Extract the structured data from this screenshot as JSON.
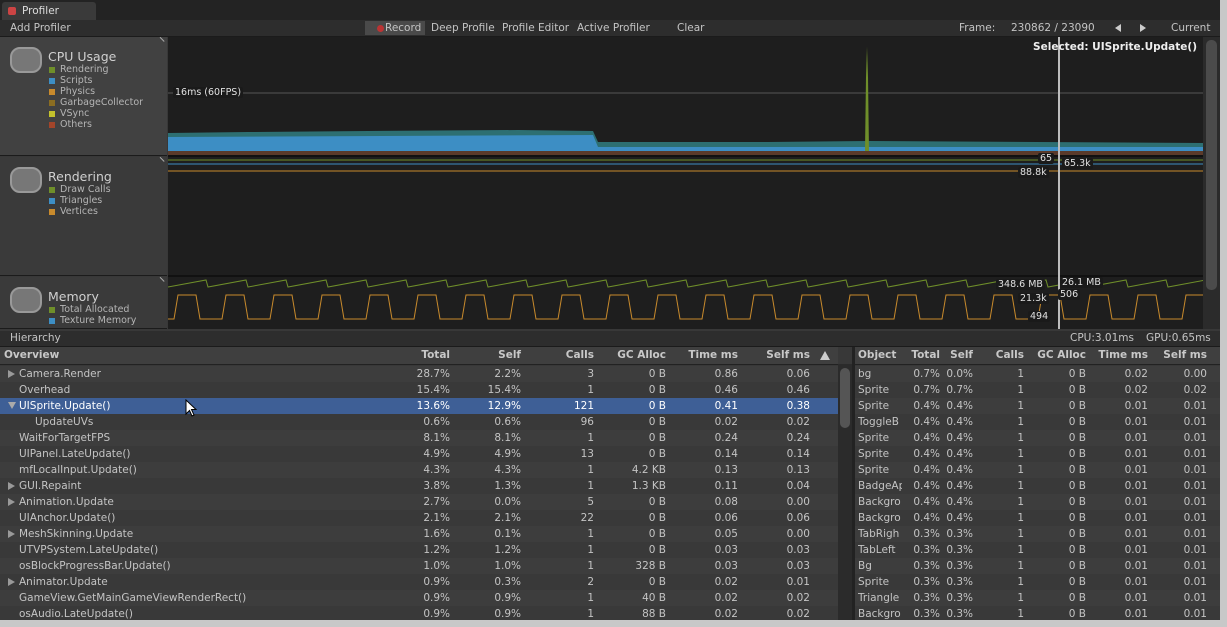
{
  "tab": "Profiler",
  "toolbar": {
    "add_profiler": "Add Profiler",
    "record": "Record",
    "deep_profile": "Deep Profile",
    "profile_editor": "Profile Editor",
    "active_profiler": "Active Profiler",
    "clear": "Clear",
    "frame_label": "Frame:",
    "frame_value": "230862 / 23090",
    "current": "Current"
  },
  "modules": [
    {
      "title": "CPU Usage",
      "legend": [
        {
          "name": "Rendering",
          "color": "#6f8f2a"
        },
        {
          "name": "Scripts",
          "color": "#3d8ec4"
        },
        {
          "name": "Physics",
          "color": "#c88a2c"
        },
        {
          "name": "GarbageCollector",
          "color": "#8b6d21"
        },
        {
          "name": "VSync",
          "color": "#c3c12c"
        },
        {
          "name": "Others",
          "color": "#a2452a"
        }
      ]
    },
    {
      "title": "Rendering",
      "legend": [
        {
          "name": "Draw Calls",
          "color": "#6f8f2a"
        },
        {
          "name": "Triangles",
          "color": "#3d8ec4"
        },
        {
          "name": "Vertices",
          "color": "#c88a2c"
        }
      ]
    },
    {
      "title": "Memory",
      "legend": [
        {
          "name": "Total Allocated",
          "color": "#6f8f2a"
        },
        {
          "name": "Texture Memory",
          "color": "#3d8ec4"
        }
      ]
    }
  ],
  "graph": {
    "fps_line": "16ms (60FPS)",
    "selected": "Selected: UISprite.Update()",
    "labels": [
      "65",
      "65.3k",
      "88.8k",
      "348.6 MB",
      "26.1 MB",
      "21.3k",
      "506",
      "494"
    ]
  },
  "hierarchy": {
    "view": "Hierarchy",
    "cpu": "CPU:3.01ms",
    "gpu": "GPU:0.65ms"
  },
  "overview": {
    "columns": [
      "Overview",
      "Total",
      "Self",
      "Calls",
      "GC Alloc",
      "Time ms",
      "Self ms"
    ],
    "selected_row": 2,
    "rows": [
      {
        "toggle": "closed",
        "cells": [
          "Camera.Render",
          "28.7%",
          "2.2%",
          "3",
          "0 B",
          "0.86",
          "0.06"
        ]
      },
      {
        "cells": [
          "Overhead",
          "15.4%",
          "15.4%",
          "1",
          "0 B",
          "0.46",
          "0.46"
        ]
      },
      {
        "toggle": "open",
        "cells": [
          "UISprite.Update()",
          "13.6%",
          "12.9%",
          "121",
          "0 B",
          "0.41",
          "0.38"
        ]
      },
      {
        "depth": 1,
        "cells": [
          "UpdateUVs",
          "0.6%",
          "0.6%",
          "96",
          "0 B",
          "0.02",
          "0.02"
        ]
      },
      {
        "cells": [
          "WaitForTargetFPS",
          "8.1%",
          "8.1%",
          "1",
          "0 B",
          "0.24",
          "0.24"
        ]
      },
      {
        "cells": [
          "UIPanel.LateUpdate()",
          "4.9%",
          "4.9%",
          "13",
          "0 B",
          "0.14",
          "0.14"
        ]
      },
      {
        "cells": [
          "mfLocalInput.Update()",
          "4.3%",
          "4.3%",
          "1",
          "4.2 KB",
          "0.13",
          "0.13"
        ]
      },
      {
        "toggle": "closed",
        "cells": [
          "GUI.Repaint",
          "3.8%",
          "1.3%",
          "1",
          "1.3 KB",
          "0.11",
          "0.04"
        ]
      },
      {
        "toggle": "closed",
        "cells": [
          "Animation.Update",
          "2.7%",
          "0.0%",
          "5",
          "0 B",
          "0.08",
          "0.00"
        ]
      },
      {
        "cells": [
          "UIAnchor.Update()",
          "2.1%",
          "2.1%",
          "22",
          "0 B",
          "0.06",
          "0.06"
        ]
      },
      {
        "toggle": "closed",
        "cells": [
          "MeshSkinning.Update",
          "1.6%",
          "0.1%",
          "1",
          "0 B",
          "0.05",
          "0.00"
        ]
      },
      {
        "cells": [
          "UTVPSystem.LateUpdate()",
          "1.2%",
          "1.2%",
          "1",
          "0 B",
          "0.03",
          "0.03"
        ]
      },
      {
        "cells": [
          "osBlockProgressBar.Update()",
          "1.0%",
          "1.0%",
          "1",
          "328 B",
          "0.03",
          "0.03"
        ]
      },
      {
        "toggle": "closed",
        "cells": [
          "Animator.Update",
          "0.9%",
          "0.3%",
          "2",
          "0 B",
          "0.02",
          "0.01"
        ]
      },
      {
        "cells": [
          "GameView.GetMainGameViewRenderRect()",
          "0.9%",
          "0.9%",
          "1",
          "40 B",
          "0.02",
          "0.02"
        ]
      },
      {
        "cells": [
          "osAudio.LateUpdate()",
          "0.9%",
          "0.9%",
          "1",
          "88 B",
          "0.02",
          "0.02"
        ]
      }
    ]
  },
  "objects": {
    "columns": [
      "Object",
      "Total",
      "Self",
      "Calls",
      "GC Alloc",
      "Time ms",
      "Self ms"
    ],
    "rows": [
      [
        "bg",
        "0.7%",
        "0.0%",
        "1",
        "0 B",
        "0.02",
        "0.00"
      ],
      [
        "Sprite",
        "0.7%",
        "0.7%",
        "1",
        "0 B",
        "0.02",
        "0.02"
      ],
      [
        "Sprite",
        "0.4%",
        "0.4%",
        "1",
        "0 B",
        "0.01",
        "0.01"
      ],
      [
        "ToggleB",
        "0.4%",
        "0.4%",
        "1",
        "0 B",
        "0.01",
        "0.01"
      ],
      [
        "Sprite",
        "0.4%",
        "0.4%",
        "1",
        "0 B",
        "0.01",
        "0.01"
      ],
      [
        "Sprite",
        "0.4%",
        "0.4%",
        "1",
        "0 B",
        "0.01",
        "0.01"
      ],
      [
        "Sprite",
        "0.4%",
        "0.4%",
        "1",
        "0 B",
        "0.01",
        "0.01"
      ],
      [
        "BadgeAp",
        "0.4%",
        "0.4%",
        "1",
        "0 B",
        "0.01",
        "0.01"
      ],
      [
        "Backgro",
        "0.4%",
        "0.4%",
        "1",
        "0 B",
        "0.01",
        "0.01"
      ],
      [
        "Backgro",
        "0.4%",
        "0.4%",
        "1",
        "0 B",
        "0.01",
        "0.01"
      ],
      [
        "TabRigh",
        "0.3%",
        "0.3%",
        "1",
        "0 B",
        "0.01",
        "0.01"
      ],
      [
        "TabLeft",
        "0.3%",
        "0.3%",
        "1",
        "0 B",
        "0.01",
        "0.01"
      ],
      [
        "Bg",
        "0.3%",
        "0.3%",
        "1",
        "0 B",
        "0.01",
        "0.01"
      ],
      [
        "Sprite",
        "0.3%",
        "0.3%",
        "1",
        "0 B",
        "0.01",
        "0.01"
      ],
      [
        "Triangle",
        "0.3%",
        "0.3%",
        "1",
        "0 B",
        "0.01",
        "0.01"
      ],
      [
        "Backgro",
        "0.3%",
        "0.3%",
        "1",
        "0 B",
        "0.01",
        "0.01"
      ]
    ]
  }
}
